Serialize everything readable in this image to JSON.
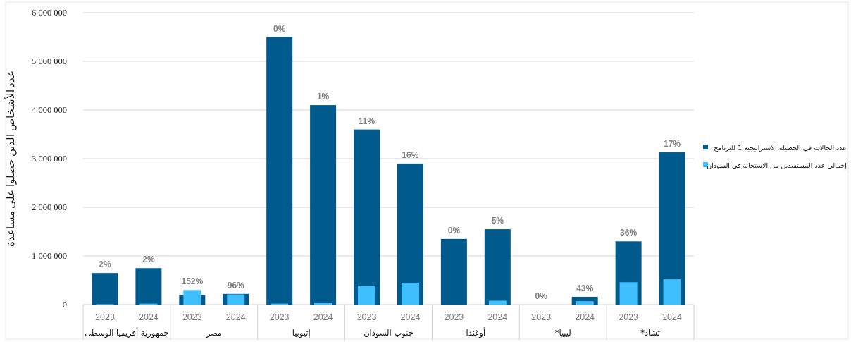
{
  "chart_data": {
    "type": "bar",
    "ylabel": "عدد الأشخاص الذين حصلوا على مساعدة",
    "categories": [
      "2023",
      "2024",
      "2023",
      "2024",
      "2023",
      "2024",
      "2023",
      "2024",
      "2023",
      "2024",
      "2023",
      "2024",
      "2023",
      "2024"
    ],
    "annotations": [
      "جمهورية أفريقيا الوسطى",
      "مصر",
      "إثيوبيا",
      "جنوب السودان",
      "أوغندا",
      "ليبيا*",
      "تشاد*",
      {
        "text": "2%",
        "y": 650000
      },
      {
        "text": "2%",
        "y": 750000
      },
      {
        "text": "152%",
        "y": 300000
      },
      {
        "text": "96%",
        "y": 220000
      },
      {
        "text": "0%",
        "y": 5500000
      },
      {
        "text": "1%",
        "y": 4100000
      },
      {
        "text": "11%",
        "y": 3600000
      },
      {
        "text": "16%",
        "y": 2900000
      },
      {
        "text": "0%",
        "y": 1350000
      },
      {
        "text": "5%",
        "y": 1550000
      },
      {
        "text": "0%",
        "y": 0
      },
      {
        "text": "43%",
        "y": 160000
      },
      {
        "text": "36%",
        "y": 1300000
      },
      {
        "text": "17%",
        "y": 3130000
      }
    ],
    "series": [
      {
        "name": "عدد الحالات في الحصيلة الاستراتيجية 1 للبرنامج",
        "color": "#005b8c",
        "values": [
          650000,
          750000,
          200000,
          220000,
          5500000,
          4100000,
          3600000,
          2900000,
          1350000,
          1550000,
          0,
          160000,
          1300000,
          3130000
        ]
      },
      {
        "name": "إجمالي عدد المستفيدين من الاستجابة في السودان",
        "color": "#40bfff",
        "values": [
          10000,
          20000,
          300000,
          210000,
          20000,
          40000,
          390000,
          450000,
          0,
          80000,
          0,
          70000,
          460000,
          520000
        ]
      }
    ],
    "ylim": [
      0,
      6000000
    ],
    "yticks": [
      {
        "value": 0,
        "label": "0"
      },
      {
        "value": 1000000,
        "label": "1 000 000"
      },
      {
        "value": 2000000,
        "label": "2 000 000"
      },
      {
        "value": 3000000,
        "label": "3 000 000"
      },
      {
        "value": 4000000,
        "label": "4 000 000"
      },
      {
        "value": 5000000,
        "label": "5 000 000"
      },
      {
        "value": 6000000,
        "label": "6 000 000"
      }
    ],
    "grid": "y",
    "legend": "right"
  }
}
